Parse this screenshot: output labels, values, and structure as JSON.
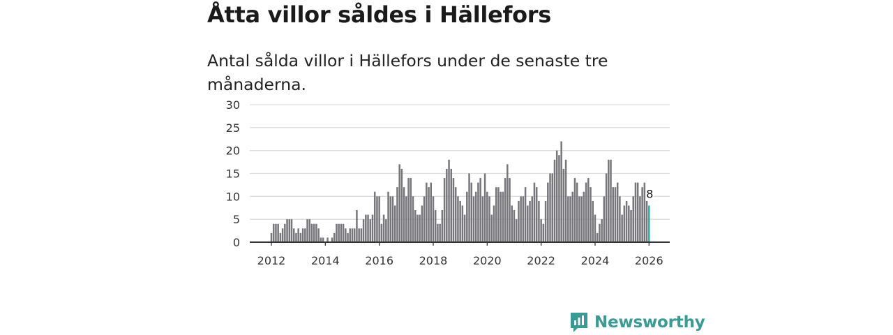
{
  "title": "Åtta villor såldes i Hällefors",
  "subtitle": "Antal sålda villor i Hällefors under de senaste tre månaderna.",
  "logo": {
    "text": "Newsworthy",
    "color": "#3a9b94"
  },
  "colors": {
    "bar": "#77767b",
    "highlight": "#1fb5a6",
    "grid": "#dddddd",
    "axis": "#333333"
  },
  "chart_data": {
    "type": "bar",
    "title": "Åtta villor såldes i Hällefors",
    "xlabel": "",
    "ylabel": "",
    "ylim": [
      0,
      30
    ],
    "yticks": [
      "0",
      "5",
      "10",
      "15",
      "20",
      "25",
      "30"
    ],
    "xticks": [
      "2012",
      "2014",
      "2016",
      "2018",
      "2020",
      "2022",
      "2024",
      "2026"
    ],
    "start": "2012-01",
    "frequency": "monthly",
    "values": [
      2,
      4,
      4,
      4,
      2,
      3,
      4,
      5,
      5,
      5,
      3,
      2,
      3,
      2,
      3,
      3,
      5,
      5,
      4,
      4,
      4,
      3,
      1,
      1,
      0,
      1,
      0,
      1,
      2,
      4,
      4,
      4,
      4,
      3,
      2,
      3,
      3,
      3,
      7,
      3,
      3,
      5,
      6,
      6,
      5,
      6,
      11,
      10,
      10,
      4,
      6,
      5,
      11,
      10,
      10,
      8,
      12,
      17,
      16,
      12,
      10,
      14,
      14,
      10,
      7,
      6,
      6,
      8,
      10,
      13,
      12,
      13,
      10,
      7,
      4,
      4,
      7,
      14,
      16,
      18,
      16,
      14,
      12,
      10,
      9,
      8,
      6,
      11,
      15,
      13,
      10,
      11,
      13,
      14,
      10,
      15,
      11,
      10,
      6,
      8,
      12,
      12,
      11,
      11,
      14,
      17,
      14,
      8,
      7,
      5,
      9,
      10,
      10,
      12,
      8,
      9,
      10,
      13,
      12,
      9,
      5,
      4,
      9,
      13,
      15,
      15,
      18,
      20,
      19,
      22,
      16,
      18,
      10,
      10,
      11,
      14,
      13,
      10,
      10,
      11,
      13,
      14,
      12,
      9,
      6,
      2,
      4,
      5,
      10,
      15,
      18,
      18,
      12,
      12,
      13,
      10,
      6,
      8,
      9,
      8,
      7,
      10,
      13,
      13,
      10,
      12,
      13,
      9,
      8
    ],
    "annotation": {
      "label": "8",
      "index": "last"
    },
    "grid": true,
    "legend": "none"
  }
}
